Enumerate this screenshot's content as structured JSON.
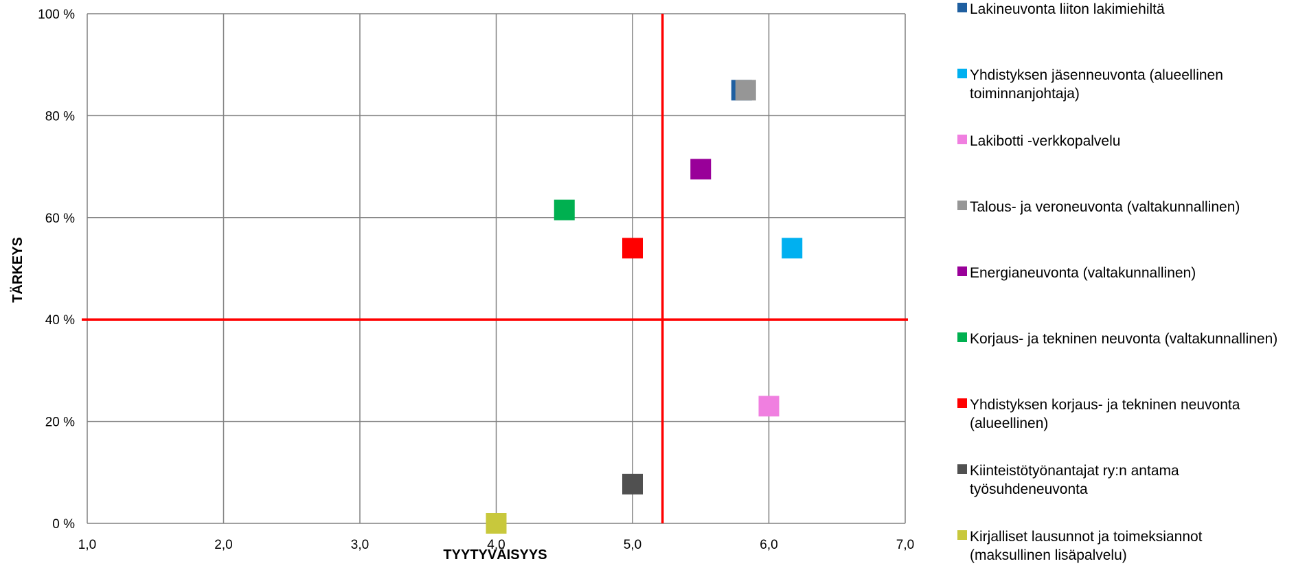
{
  "chart_data": {
    "type": "scatter",
    "title": "",
    "xlabel": "TYYTYVÄISYYS",
    "ylabel": "TÄRKEYS",
    "xlim": [
      1.0,
      7.0
    ],
    "ylim": [
      0,
      100
    ],
    "x_ticks": [
      "1,0",
      "2,0",
      "3,0",
      "4,0",
      "5,0",
      "6,0",
      "7,0"
    ],
    "y_ticks": [
      "0 %",
      "20 %",
      "40 %",
      "60 %",
      "80 %",
      "100 %"
    ],
    "grid": true,
    "legend_position": "right",
    "reference_lines": [
      {
        "axis": "x",
        "value": 5.22,
        "color": "#ff0000"
      },
      {
        "axis": "y",
        "value": 40,
        "color": "#ff0000"
      }
    ],
    "series": [
      {
        "name": "Lakineuvonta liiton lakimiehiltä",
        "color": "#1f5fa0",
        "x": 5.8,
        "y": 85
      },
      {
        "name": "Yhdistyksen jäsenneuvonta (alueellinen toiminnanjohtaja)",
        "color": "#00b0f0",
        "x": 6.17,
        "y": 54
      },
      {
        "name": "Lakibotti -verkkopalvelu",
        "color": "#f07fe0",
        "x": 6.0,
        "y": 23
      },
      {
        "name": "Talous- ja veroneuvonta (valtakunnallinen)",
        "color": "#969696",
        "x": 5.83,
        "y": 85
      },
      {
        "name": "Energianeuvonta (valtakunnallinen)",
        "color": "#990099",
        "x": 5.5,
        "y": 69.5
      },
      {
        "name": "Korjaus- ja tekninen neuvonta (valtakunnallinen)",
        "color": "#00b050",
        "x": 4.5,
        "y": 61.5
      },
      {
        "name": "Yhdistyksen korjaus- ja tekninen neuvonta (alueellinen)",
        "color": "#ff0000",
        "x": 5.0,
        "y": 54
      },
      {
        "name": "Kiinteistötyönantajat ry:n antama työsuhdeneuvonta",
        "color": "#505050",
        "x": 5.0,
        "y": 7.7
      },
      {
        "name": "Kirjalliset lausunnot ja toimeksiannot (maksullinen lisäpalvelu)",
        "color": "#c8c83c",
        "x": 4.0,
        "y": 0
      }
    ]
  }
}
